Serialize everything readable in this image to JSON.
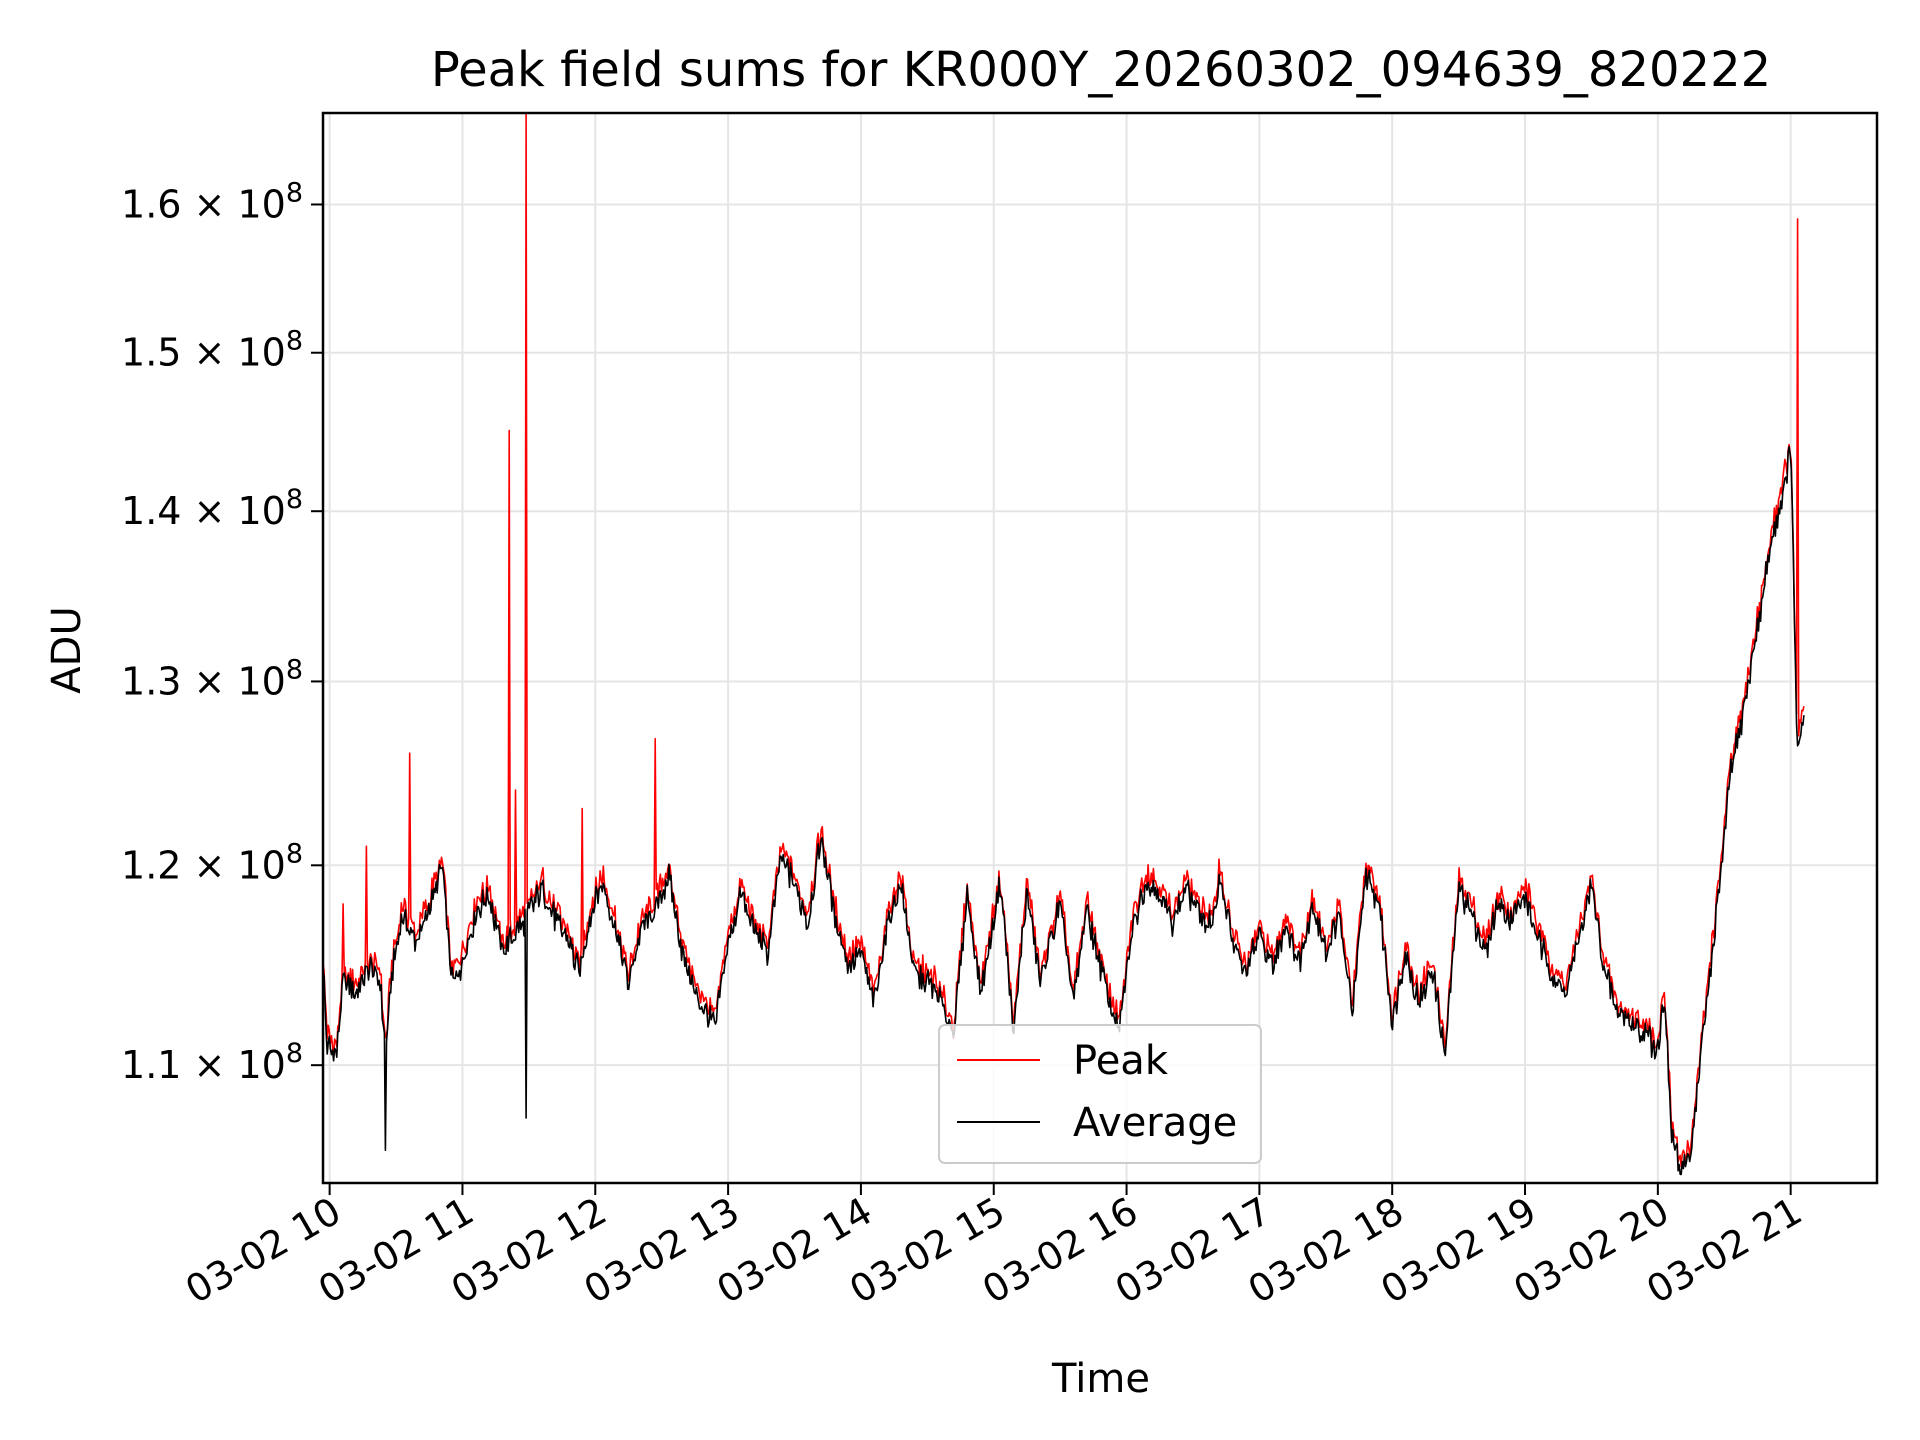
{
  "chart_data": {
    "type": "line",
    "title": "Peak field sums for KR000Y_20260302_094639_820222",
    "xlabel": "Time",
    "ylabel": "ADU",
    "y_scale": "log",
    "xlim": [
      9.95,
      21.65
    ],
    "ylim": [
      104500000,
      166500000
    ],
    "grid": true,
    "legend_position": "lower-center",
    "x_ticks": [
      {
        "value": 10,
        "label": "03-02 10"
      },
      {
        "value": 11,
        "label": "03-02 11"
      },
      {
        "value": 12,
        "label": "03-02 12"
      },
      {
        "value": 13,
        "label": "03-02 13"
      },
      {
        "value": 14,
        "label": "03-02 14"
      },
      {
        "value": 15,
        "label": "03-02 15"
      },
      {
        "value": 16,
        "label": "03-02 16"
      },
      {
        "value": 17,
        "label": "03-02 17"
      },
      {
        "value": 18,
        "label": "03-02 18"
      },
      {
        "value": 19,
        "label": "03-02 19"
      },
      {
        "value": 20,
        "label": "03-02 20"
      },
      {
        "value": 21,
        "label": "03-02 21"
      }
    ],
    "y_ticks": [
      {
        "value": 110000000,
        "mantissa": "1.1",
        "exponent": "8"
      },
      {
        "value": 120000000,
        "mantissa": "1.2",
        "exponent": "8"
      },
      {
        "value": 130000000,
        "mantissa": "1.3",
        "exponent": "8"
      },
      {
        "value": 140000000,
        "mantissa": "1.4",
        "exponent": "8"
      },
      {
        "value": 150000000,
        "mantissa": "1.5",
        "exponent": "8"
      },
      {
        "value": 160000000,
        "mantissa": "1.6",
        "exponent": "8"
      }
    ],
    "average_anchors": [
      [
        9.95,
        115000000
      ],
      [
        9.98,
        111000000
      ],
      [
        10.05,
        110500000
      ],
      [
        10.1,
        114000000
      ],
      [
        10.2,
        113500000
      ],
      [
        10.3,
        114800000
      ],
      [
        10.38,
        114200000
      ],
      [
        10.42,
        110500000
      ],
      [
        10.47,
        114500000
      ],
      [
        10.55,
        117500000
      ],
      [
        10.65,
        116000000
      ],
      [
        10.75,
        117800000
      ],
      [
        10.85,
        119800000
      ],
      [
        10.92,
        114000000
      ],
      [
        11.0,
        115000000
      ],
      [
        11.1,
        117500000
      ],
      [
        11.2,
        118500000
      ],
      [
        11.3,
        115500000
      ],
      [
        11.4,
        116500000
      ],
      [
        11.5,
        117500000
      ],
      [
        11.6,
        118800000
      ],
      [
        11.7,
        117200000
      ],
      [
        11.8,
        116000000
      ],
      [
        11.88,
        114500000
      ],
      [
        11.95,
        117000000
      ],
      [
        12.05,
        119200000
      ],
      [
        12.15,
        116800000
      ],
      [
        12.25,
        114000000
      ],
      [
        12.35,
        116800000
      ],
      [
        12.45,
        117500000
      ],
      [
        12.55,
        119500000
      ],
      [
        12.65,
        115800000
      ],
      [
        12.75,
        113500000
      ],
      [
        12.85,
        112500000
      ],
      [
        12.9,
        111800000
      ],
      [
        13.0,
        116000000
      ],
      [
        13.1,
        118500000
      ],
      [
        13.2,
        116500000
      ],
      [
        13.3,
        115500000
      ],
      [
        13.4,
        120500000
      ],
      [
        13.5,
        119000000
      ],
      [
        13.6,
        117000000
      ],
      [
        13.7,
        121500000
      ],
      [
        13.8,
        117500000
      ],
      [
        13.9,
        115000000
      ],
      [
        14.0,
        115500000
      ],
      [
        14.1,
        113000000
      ],
      [
        14.2,
        117000000
      ],
      [
        14.3,
        119000000
      ],
      [
        14.4,
        114500000
      ],
      [
        14.55,
        113800000
      ],
      [
        14.7,
        111500000
      ],
      [
        14.8,
        118500000
      ],
      [
        14.9,
        113500000
      ],
      [
        15.05,
        119000000
      ],
      [
        15.15,
        111500000
      ],
      [
        15.25,
        118800000
      ],
      [
        15.35,
        114000000
      ],
      [
        15.5,
        118000000
      ],
      [
        15.6,
        113000000
      ],
      [
        15.7,
        117800000
      ],
      [
        15.85,
        113500000
      ],
      [
        15.95,
        111800000
      ],
      [
        16.05,
        117000000
      ],
      [
        16.15,
        119200000
      ],
      [
        16.25,
        118500000
      ],
      [
        16.35,
        117000000
      ],
      [
        16.45,
        118800000
      ],
      [
        16.55,
        117500000
      ],
      [
        16.65,
        116800000
      ],
      [
        16.7,
        119500000
      ],
      [
        16.8,
        116000000
      ],
      [
        16.9,
        114500000
      ],
      [
        17.0,
        116500000
      ],
      [
        17.1,
        114800000
      ],
      [
        17.2,
        117000000
      ],
      [
        17.3,
        115000000
      ],
      [
        17.4,
        118000000
      ],
      [
        17.5,
        115500000
      ],
      [
        17.6,
        117500000
      ],
      [
        17.7,
        112500000
      ],
      [
        17.8,
        119500000
      ],
      [
        17.9,
        118000000
      ],
      [
        18.0,
        112000000
      ],
      [
        18.1,
        115500000
      ],
      [
        18.2,
        113000000
      ],
      [
        18.3,
        114800000
      ],
      [
        18.4,
        110500000
      ],
      [
        18.5,
        118800000
      ],
      [
        18.6,
        117500000
      ],
      [
        18.7,
        115500000
      ],
      [
        18.8,
        118000000
      ],
      [
        18.9,
        117200000
      ],
      [
        19.0,
        118500000
      ],
      [
        19.1,
        116200000
      ],
      [
        19.2,
        114500000
      ],
      [
        19.3,
        113500000
      ],
      [
        19.4,
        116000000
      ],
      [
        19.5,
        119000000
      ],
      [
        19.6,
        114500000
      ],
      [
        19.7,
        112500000
      ],
      [
        19.8,
        112000000
      ],
      [
        19.9,
        111500000
      ],
      [
        20.0,
        110800000
      ],
      [
        20.05,
        113500000
      ],
      [
        20.1,
        107000000
      ],
      [
        20.18,
        104800000
      ],
      [
        20.25,
        106000000
      ],
      [
        20.35,
        112000000
      ],
      [
        20.45,
        118000000
      ],
      [
        20.55,
        125000000
      ],
      [
        20.65,
        128500000
      ],
      [
        20.75,
        133000000
      ],
      [
        20.85,
        138000000
      ],
      [
        20.95,
        141500000
      ],
      [
        21.0,
        144000000
      ],
      [
        21.05,
        126000000
      ],
      [
        21.1,
        128000000
      ]
    ],
    "series": [
      {
        "name": "Peak",
        "color": "#ff0000",
        "offset_pct": 0.4,
        "spikes": [
          [
            10.1,
            118000000
          ],
          [
            10.28,
            121000000
          ],
          [
            10.6,
            126000000
          ],
          [
            11.35,
            145000000
          ],
          [
            11.4,
            124000000
          ],
          [
            11.48,
            166500000
          ],
          [
            11.9,
            123000000
          ],
          [
            12.45,
            126800000
          ],
          [
            21.05,
            159000000
          ]
        ]
      },
      {
        "name": "Average",
        "color": "#000000",
        "offset_pct": 0.0,
        "spikes": [
          [
            10.42,
            106000000
          ],
          [
            11.48,
            107500000
          ]
        ]
      }
    ]
  }
}
